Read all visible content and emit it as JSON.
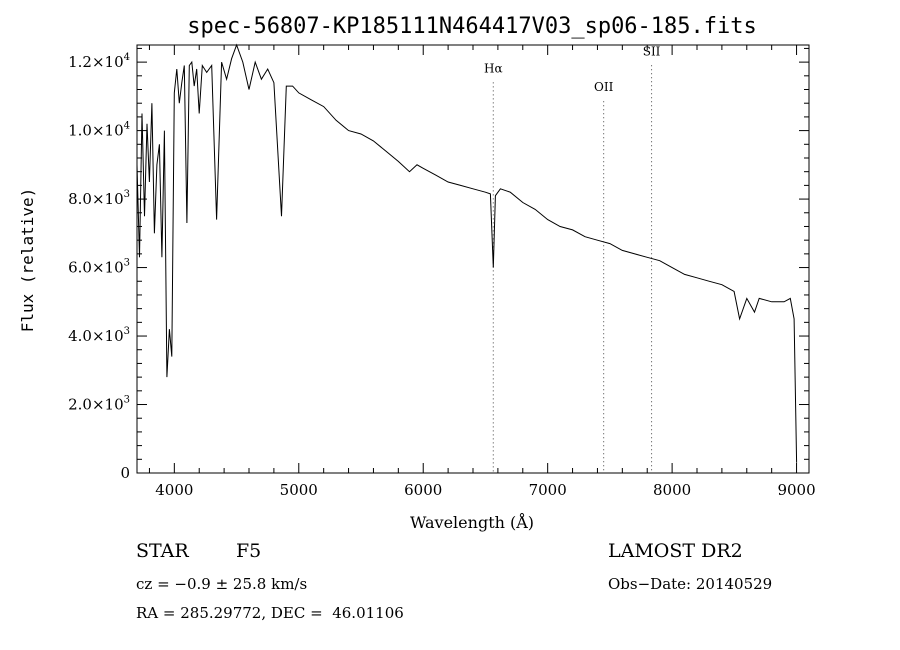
{
  "chart_data": {
    "type": "line",
    "title": "spec-56807-KP185111N464417V03_sp06-185.fits",
    "xlabel": "Wavelength (Å)",
    "ylabel": "Flux (relative)",
    "xlim": [
      3700,
      9100
    ],
    "ylim": [
      0,
      12500
    ],
    "grid": false,
    "x_ticks": [
      4000,
      5000,
      6000,
      7000,
      8000,
      9000
    ],
    "y_ticks": [
      {
        "value": 0,
        "mantissa": "0",
        "exp": ""
      },
      {
        "value": 2000,
        "mantissa": "2.0×10",
        "exp": "3"
      },
      {
        "value": 4000,
        "mantissa": "4.0×10",
        "exp": "3"
      },
      {
        "value": 6000,
        "mantissa": "6.0×10",
        "exp": "3"
      },
      {
        "value": 8000,
        "mantissa": "8.0×10",
        "exp": "3"
      },
      {
        "value": 10000,
        "mantissa": "1.0×10",
        "exp": "4"
      },
      {
        "value": 12000,
        "mantissa": "1.2×10",
        "exp": "4"
      }
    ],
    "lines": [
      {
        "name": "Hα",
        "wavelength": 6563,
        "label_flux": 11700
      },
      {
        "name": "OII",
        "wavelength": 7450,
        "label_flux": 11150
      },
      {
        "name": "SII",
        "wavelength": 7835,
        "label_flux": 12200
      }
    ],
    "series": [
      {
        "name": "spectrum",
        "x": [
          3700,
          3720,
          3740,
          3760,
          3780,
          3800,
          3820,
          3840,
          3860,
          3880,
          3900,
          3920,
          3940,
          3960,
          3980,
          4000,
          4020,
          4040,
          4060,
          4080,
          4101,
          4120,
          4140,
          4160,
          4180,
          4200,
          4225,
          4260,
          4300,
          4340,
          4380,
          4420,
          4460,
          4500,
          4550,
          4600,
          4650,
          4700,
          4750,
          4800,
          4861,
          4900,
          4950,
          5000,
          5100,
          5200,
          5300,
          5400,
          5500,
          5600,
          5700,
          5800,
          5890,
          5950,
          6000,
          6100,
          6200,
          6300,
          6400,
          6500,
          6540,
          6563,
          6580,
          6620,
          6700,
          6800,
          6900,
          7000,
          7100,
          7200,
          7300,
          7400,
          7500,
          7600,
          7700,
          7800,
          7900,
          8000,
          8100,
          8200,
          8300,
          8400,
          8498,
          8542,
          8600,
          8662,
          8700,
          8800,
          8900,
          8950,
          8980,
          9000
        ],
        "y": [
          9000,
          6300,
          10500,
          7500,
          10200,
          8500,
          10800,
          7000,
          9000,
          9600,
          6300,
          10000,
          2800,
          4200,
          3400,
          11100,
          11800,
          10800,
          11400,
          11900,
          7300,
          11900,
          12000,
          11300,
          11800,
          10500,
          11900,
          11700,
          11900,
          7400,
          12000,
          11500,
          12100,
          12500,
          12000,
          11200,
          12000,
          11500,
          11800,
          11400,
          7500,
          11300,
          11300,
          11100,
          10900,
          10700,
          10300,
          10000,
          9900,
          9700,
          9400,
          9100,
          8800,
          9000,
          8900,
          8700,
          8500,
          8400,
          8300,
          8200,
          8150,
          6000,
          8100,
          8300,
          8200,
          7900,
          7700,
          7400,
          7200,
          7100,
          6900,
          6800,
          6700,
          6500,
          6400,
          6300,
          6200,
          6000,
          5800,
          5700,
          5600,
          5500,
          5300,
          4500,
          5100,
          4700,
          5100,
          5000,
          5000,
          5100,
          4500,
          300
        ]
      }
    ]
  },
  "footer": {
    "object_type": "STAR",
    "subclass": "F5",
    "survey": "LAMOST DR2",
    "redshift": "cz = −0.9 ± 25.8 km/s",
    "obs_date": "Obs−Date: 20140529",
    "coords": "RA = 285.29772, DEC =  46.01106"
  }
}
